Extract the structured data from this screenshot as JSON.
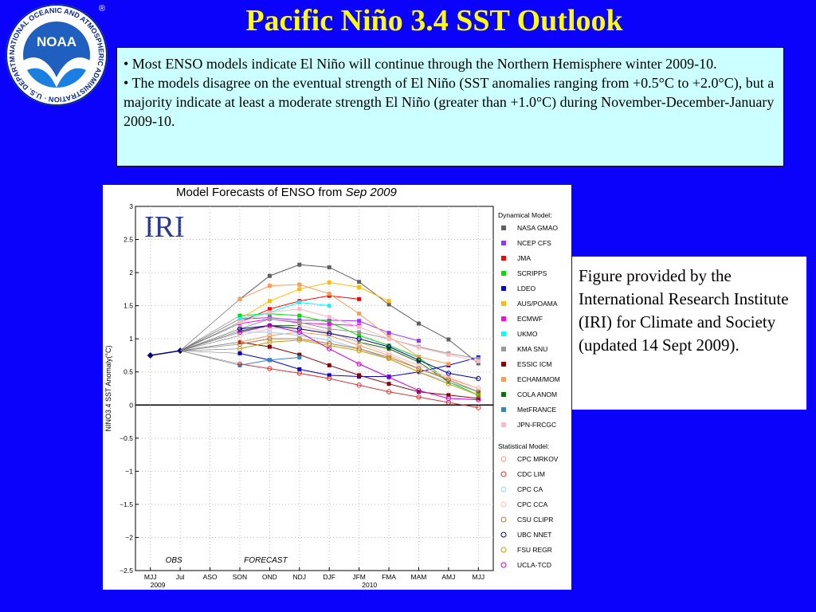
{
  "slide": {
    "title": "Pacific Niño 3.4 SST Outlook",
    "bullets": [
      "• Most ENSO models indicate El Niño will continue through the Northern Hemisphere winter 2009-10.",
      "• The models disagree on the eventual strength of El Niño (SST anomalies ranging from +0.5°C to +2.0°C), but a majority indicate at least a moderate strength El Niño (greater than +1.0°C) during November-December-January 2009-10."
    ],
    "credit": "Figure provided by the International Research Institute (IRI) for Climate and Society (updated 14 Sept 2009).",
    "logo": {
      "text": "NOAA",
      "ring_text": "NATIONAL OCEANIC AND ATMOSPHERIC ADMINISTRATION · U.S. DEPARTMENT OF COMMERCE ·",
      "registered": "®"
    }
  },
  "chart_data": {
    "type": "line",
    "title_prefix": "Model Forecasts of ENSO from",
    "title_date": "Sep 2009",
    "watermark": "IRI",
    "ylabel": "NINO3.4 SST Anomaly(°C)",
    "ylim": [
      -2.5,
      3
    ],
    "yticks": [
      "3",
      "2.5",
      "2",
      "1.5",
      "1",
      "0.5",
      "0",
      "−0.5",
      "−1",
      "−1.5",
      "−2",
      "−2.5"
    ],
    "categories": [
      "MJJ",
      "Jul",
      "ASO",
      "SON",
      "OND",
      "NDJ",
      "DJF",
      "JFM",
      "FMA",
      "MAM",
      "AMJ",
      "MJJ"
    ],
    "year_labels": [
      {
        "text": "2009",
        "index": 0.25
      },
      {
        "text": "2010",
        "index": 7.35
      }
    ],
    "obs_label": "OBS",
    "forecast_label": "FORECAST",
    "observed": [
      0.75,
      0.82
    ],
    "legend_dynamical_header": "Dynamical Model:",
    "legend_statistical_header": "Statistical Model:",
    "series": [
      {
        "name": "NASA GMAO",
        "group": "dynamical",
        "color": "#606060",
        "values": [
          null,
          null,
          null,
          1.6,
          1.95,
          2.12,
          2.08,
          1.86,
          1.52,
          1.23,
          0.99,
          0.63
        ]
      },
      {
        "name": "NCEP CFS",
        "group": "dynamical",
        "color": "#9b30ff",
        "values": [
          null,
          null,
          null,
          1.3,
          1.32,
          1.28,
          1.28,
          1.27,
          1.09,
          0.97,
          null,
          null
        ]
      },
      {
        "name": "JMA",
        "group": "dynamical",
        "color": "#ff0000",
        "values": [
          null,
          null,
          null,
          1.25,
          1.45,
          1.57,
          1.65,
          1.6,
          null,
          null,
          null,
          null
        ]
      },
      {
        "name": "SCRIPPS",
        "group": "dynamical",
        "color": "#00dd00",
        "values": [
          null,
          null,
          null,
          1.35,
          1.38,
          1.35,
          1.25,
          1.05,
          0.9,
          0.72,
          0.35,
          0.15
        ]
      },
      {
        "name": "LDEO",
        "group": "dynamical",
        "color": "#0000dd",
        "values": [
          null,
          null,
          null,
          0.78,
          0.68,
          0.54,
          0.45,
          0.43,
          0.43,
          0.5,
          0.6,
          0.72
        ]
      },
      {
        "name": "AUS/POAMA",
        "group": "dynamical",
        "color": "#ffbb00",
        "values": [
          null,
          null,
          null,
          1.3,
          1.57,
          1.75,
          1.85,
          1.78,
          1.57,
          null,
          null,
          null
        ]
      },
      {
        "name": "ECMWF",
        "group": "dynamical",
        "color": "#ff00ff",
        "values": [
          null,
          null,
          null,
          1.23,
          1.3,
          1.24,
          1.22,
          1.2,
          null,
          null,
          null,
          null
        ]
      },
      {
        "name": "UKMO",
        "group": "dynamical",
        "color": "#00ffff",
        "values": [
          null,
          null,
          null,
          1.3,
          1.4,
          1.55,
          1.5,
          null,
          null,
          null,
          null,
          null
        ]
      },
      {
        "name": "KMA SNU",
        "group": "dynamical",
        "color": "#999999",
        "values": [
          null,
          null,
          null,
          1.15,
          1.3,
          1.25,
          1.15,
          1.1,
          1.0,
          0.88,
          0.78,
          0.7
        ]
      },
      {
        "name": "ESSIC ICM",
        "group": "dynamical",
        "color": "#880000",
        "values": [
          null,
          null,
          null,
          0.95,
          0.88,
          0.76,
          0.6,
          0.45,
          0.32,
          0.2,
          0.15,
          0.1
        ]
      },
      {
        "name": "ECHAM/MOM",
        "group": "dynamical",
        "color": "#ff9955",
        "values": [
          null,
          null,
          null,
          1.6,
          1.8,
          1.82,
          1.68,
          1.38,
          1.03,
          0.73,
          0.62,
          null
        ]
      },
      {
        "name": "COLA ANOM",
        "group": "dynamical",
        "color": "#007700",
        "values": [
          null,
          null,
          null,
          1.12,
          1.2,
          1.2,
          1.1,
          0.95,
          0.85,
          0.65,
          0.35,
          0.2
        ]
      },
      {
        "name": "MetFRANCE",
        "group": "dynamical",
        "color": "#3388bb",
        "values": [
          null,
          null,
          null,
          0.6,
          0.68,
          0.72,
          null,
          null,
          null,
          null,
          null,
          null
        ]
      },
      {
        "name": "JPN-FRCGC",
        "group": "dynamical",
        "color": "#ffb6c1",
        "values": [
          null,
          null,
          null,
          1.25,
          1.4,
          1.45,
          1.33,
          1.18,
          1.0,
          0.87,
          0.76,
          0.66
        ]
      },
      {
        "name": "CPC MRKOV",
        "group": "statistical",
        "color": "#ff9966",
        "values": [
          null,
          null,
          null,
          0.95,
          1.05,
          1.1,
          1.05,
          0.9,
          0.75,
          0.55,
          0.4,
          0.25
        ]
      },
      {
        "name": "CDC LIM",
        "group": "statistical",
        "color": "#dd3333",
        "values": [
          null,
          null,
          null,
          0.62,
          0.55,
          0.48,
          0.4,
          0.3,
          0.2,
          0.12,
          0.04,
          -0.04
        ]
      },
      {
        "name": "CPC CA",
        "group": "statistical",
        "color": "#99ccff",
        "values": [
          null,
          null,
          null,
          1.1,
          1.1,
          1.05,
          0.98,
          0.85,
          0.7,
          0.5,
          0.35,
          0.2
        ]
      },
      {
        "name": "CPC CCA",
        "group": "statistical",
        "color": "#ffbbbb",
        "values": [
          null,
          null,
          null,
          1.05,
          1.15,
          1.2,
          1.1,
          0.95,
          0.78,
          0.6,
          0.42,
          0.25
        ]
      },
      {
        "name": "CSU CLIPR",
        "group": "statistical",
        "color": "#aa7744",
        "values": [
          null,
          null,
          null,
          0.92,
          1.0,
          1.0,
          0.93,
          0.85,
          0.72,
          0.55,
          0.38,
          0.2
        ]
      },
      {
        "name": "UBC NNET",
        "group": "statistical",
        "color": "#000088",
        "values": [
          null,
          null,
          null,
          1.15,
          1.2,
          1.15,
          1.08,
          1.0,
          0.88,
          0.68,
          0.48,
          0.4
        ]
      },
      {
        "name": "FSU REGR",
        "group": "statistical",
        "color": "#cc9900",
        "values": [
          null,
          null,
          null,
          0.85,
          0.95,
          0.98,
          0.9,
          0.82,
          0.7,
          0.5,
          0.32,
          0.15
        ]
      },
      {
        "name": "UCLA-TCD",
        "group": "statistical",
        "color": "#cc00cc",
        "values": [
          null,
          null,
          null,
          1.1,
          1.2,
          1.1,
          0.85,
          0.62,
          0.42,
          0.22,
          0.1,
          0.08
        ]
      }
    ]
  }
}
